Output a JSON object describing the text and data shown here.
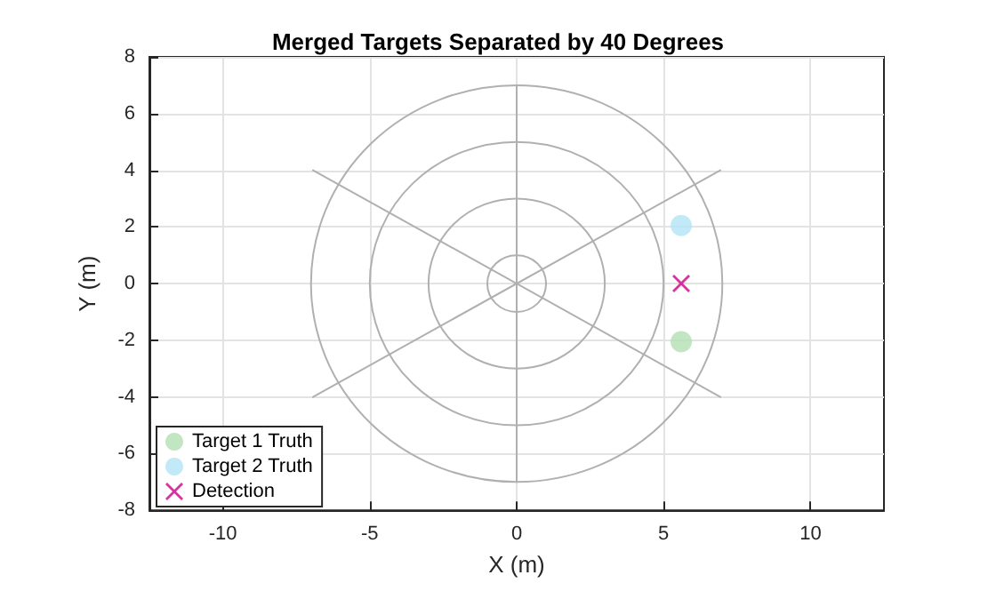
{
  "chart_data": {
    "type": "scatter",
    "title": "Merged Targets Separated by 40 Degrees",
    "xlabel": "X (m)",
    "ylabel": "Y (m)",
    "xlim": [
      -12.5,
      12.5
    ],
    "xticks": [
      -10,
      -5,
      0,
      5,
      10
    ],
    "ylim": [
      -8,
      8
    ],
    "yticks": [
      -8,
      -6,
      -4,
      -2,
      0,
      2,
      4,
      6,
      8
    ],
    "grid": true,
    "legend": "bottom left",
    "series": [
      {
        "type": "line",
        "color": "#b0b0b0",
        "marker": "none",
        "x": [
          -6.93,
          6.93
        ],
        "values": [
          -4,
          4
        ]
      },
      {
        "type": "line",
        "color": "#b0b0b0",
        "marker": "none",
        "x": [
          -6.93,
          6.93
        ],
        "values": [
          4,
          -4
        ]
      },
      {
        "type": "line",
        "color": "#b0b0b0",
        "marker": "none",
        "x": [
          0,
          0
        ],
        "values": [
          -7,
          7
        ]
      },
      {
        "name": "Target 1 Truth",
        "color": "#b3e0b3",
        "marker": "circle",
        "x": [
          5.6
        ],
        "values": [
          -2.05
        ]
      },
      {
        "name": "Target 2 Truth",
        "color": "#b3e3f5",
        "marker": "circle",
        "x": [
          5.6
        ],
        "values": [
          2.05
        ]
      },
      {
        "name": "Detection",
        "color": "#cc0088",
        "marker": "cross",
        "x": [
          5.6
        ],
        "values": [
          0
        ]
      }
    ]
  }
}
